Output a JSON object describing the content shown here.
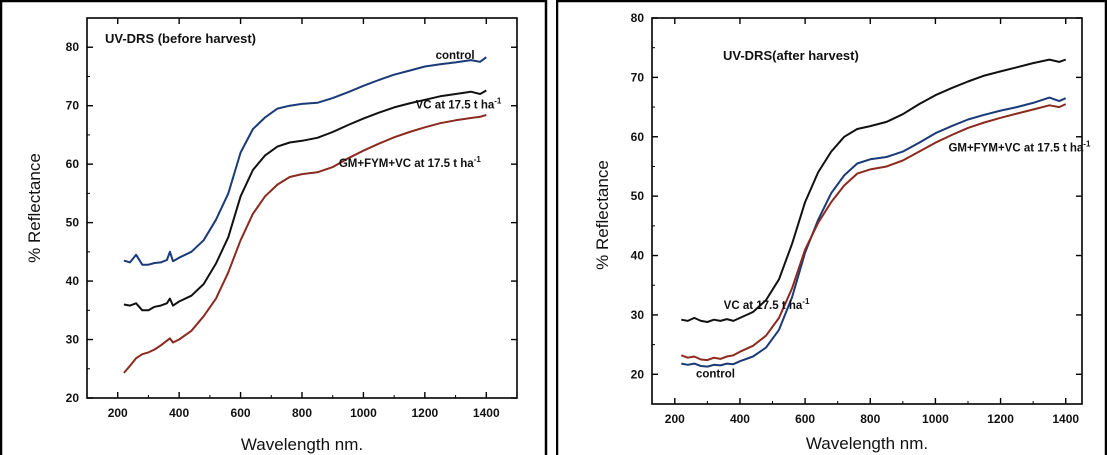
{
  "chart_data": [
    {
      "type": "line",
      "title": "UV-DRS (before harvest)",
      "xlabel": "Wavelength nm.",
      "ylabel": "% Reflectance",
      "xlim": [
        100,
        1500
      ],
      "ylim": [
        20,
        85
      ],
      "xticks": [
        200,
        400,
        600,
        800,
        1000,
        1200,
        1400
      ],
      "yticks": [
        20,
        30,
        40,
        50,
        60,
        70,
        80
      ],
      "annotations": [
        {
          "text": "control",
          "x": 1235,
          "y": 78.0
        },
        {
          "text": "VC at 17.5 t ha",
          "sup": "-1",
          "x": 1170,
          "y": 69.5
        },
        {
          "text": "GM+FYM+VC at 17.5 t ha",
          "sup": "-1",
          "x": 920,
          "y": 59.5
        }
      ],
      "series": [
        {
          "label": "control",
          "color": "#1a3a78",
          "x": [
            220,
            240,
            260,
            280,
            300,
            320,
            340,
            360,
            370,
            380,
            400,
            440,
            480,
            520,
            560,
            600,
            640,
            680,
            720,
            760,
            800,
            850,
            900,
            950,
            1000,
            1050,
            1100,
            1150,
            1200,
            1250,
            1300,
            1350,
            1380,
            1400
          ],
          "y": [
            43.5,
            43.2,
            44.5,
            42.8,
            42.8,
            43.1,
            43.2,
            43.6,
            45.0,
            43.4,
            44.0,
            45.0,
            47.0,
            50.5,
            55.0,
            62.0,
            66.0,
            68.0,
            69.5,
            70.0,
            70.3,
            70.5,
            71.3,
            72.3,
            73.4,
            74.4,
            75.3,
            76.0,
            76.7,
            77.1,
            77.4,
            77.8,
            77.5,
            78.3
          ]
        },
        {
          "label": "VC at 17.5 t ha-1",
          "color": "#111111",
          "x": [
            220,
            240,
            260,
            280,
            300,
            320,
            340,
            360,
            370,
            380,
            400,
            440,
            480,
            520,
            560,
            600,
            640,
            680,
            720,
            760,
            800,
            850,
            900,
            950,
            1000,
            1050,
            1100,
            1150,
            1200,
            1250,
            1300,
            1350,
            1380,
            1400
          ],
          "y": [
            36.0,
            35.8,
            36.2,
            35.0,
            35.0,
            35.6,
            35.8,
            36.2,
            37.0,
            35.8,
            36.5,
            37.5,
            39.5,
            43.0,
            47.5,
            54.5,
            59.0,
            61.5,
            63.0,
            63.7,
            64.0,
            64.5,
            65.5,
            66.7,
            67.8,
            68.8,
            69.7,
            70.4,
            71.0,
            71.6,
            72.0,
            72.4,
            72.0,
            72.6
          ]
        },
        {
          "label": "GM+FYM+VC at 17.5 t ha-1",
          "color": "#8b2a1e",
          "x": [
            220,
            240,
            260,
            280,
            300,
            320,
            340,
            360,
            370,
            380,
            400,
            440,
            480,
            520,
            560,
            600,
            640,
            680,
            720,
            760,
            800,
            850,
            900,
            950,
            1000,
            1050,
            1100,
            1150,
            1200,
            1250,
            1300,
            1350,
            1380,
            1400
          ],
          "y": [
            24.3,
            25.5,
            26.8,
            27.5,
            27.8,
            28.3,
            29.0,
            29.8,
            30.2,
            29.5,
            30.0,
            31.5,
            34.0,
            37.0,
            41.5,
            47.0,
            51.5,
            54.5,
            56.5,
            57.8,
            58.3,
            58.6,
            59.5,
            61.0,
            62.3,
            63.5,
            64.6,
            65.5,
            66.3,
            67.0,
            67.5,
            67.9,
            68.1,
            68.4
          ]
        }
      ]
    },
    {
      "type": "line",
      "title": "UV-DRS(after harvest)",
      "xlabel": "Wavelength nm.",
      "ylabel": "% Reflectance",
      "xlim": [
        130,
        1450
      ],
      "ylim": [
        15,
        80
      ],
      "xticks": [
        200,
        400,
        600,
        800,
        1000,
        1200,
        1400
      ],
      "yticks": [
        20,
        30,
        40,
        50,
        60,
        70,
        80
      ],
      "annotations": [
        {
          "text": "GM+FYM+VC at 17.5 t ha",
          "sup": "-1",
          "x": 1040,
          "y": 57.5
        },
        {
          "text": "VC at 17.5 t ha",
          "sup": "-1",
          "x": 350,
          "y": 31.0
        },
        {
          "text": "control",
          "x": 265,
          "y": 19.5
        }
      ],
      "series": [
        {
          "label": "VC at 17.5 t ha-1",
          "color": "#111111",
          "x": [
            220,
            240,
            260,
            280,
            300,
            320,
            340,
            360,
            380,
            400,
            440,
            480,
            520,
            560,
            600,
            640,
            680,
            720,
            760,
            800,
            850,
            900,
            950,
            1000,
            1050,
            1100,
            1150,
            1200,
            1250,
            1300,
            1350,
            1380,
            1400
          ],
          "y": [
            29.2,
            29.0,
            29.5,
            29.0,
            28.8,
            29.2,
            29.0,
            29.3,
            29.0,
            29.5,
            30.5,
            32.5,
            36.0,
            42.0,
            49.0,
            54.0,
            57.5,
            60.0,
            61.3,
            61.8,
            62.5,
            63.8,
            65.5,
            67.0,
            68.2,
            69.3,
            70.3,
            71.0,
            71.7,
            72.4,
            73.0,
            72.6,
            73.0
          ]
        },
        {
          "label": "control",
          "color": "#1a3a78",
          "x": [
            220,
            240,
            260,
            280,
            300,
            320,
            340,
            360,
            380,
            400,
            440,
            480,
            520,
            560,
            600,
            640,
            680,
            720,
            760,
            800,
            850,
            900,
            950,
            1000,
            1050,
            1100,
            1150,
            1200,
            1250,
            1300,
            1350,
            1380,
            1400
          ],
          "y": [
            21.8,
            21.6,
            21.8,
            21.4,
            21.3,
            21.6,
            21.5,
            21.8,
            21.7,
            22.2,
            23.0,
            24.5,
            27.5,
            33.0,
            40.5,
            46.0,
            50.5,
            53.5,
            55.5,
            56.2,
            56.6,
            57.5,
            59.0,
            60.6,
            61.8,
            62.9,
            63.7,
            64.4,
            65.0,
            65.7,
            66.6,
            66.0,
            66.5
          ]
        },
        {
          "label": "GM+FYM+VC at 17.5 t ha-1",
          "color": "#8b2a1e",
          "x": [
            220,
            240,
            260,
            280,
            300,
            320,
            340,
            360,
            380,
            400,
            440,
            480,
            520,
            560,
            600,
            640,
            680,
            720,
            760,
            800,
            850,
            900,
            950,
            1000,
            1050,
            1100,
            1150,
            1200,
            1250,
            1300,
            1350,
            1380,
            1400
          ],
          "y": [
            23.2,
            22.8,
            23.0,
            22.5,
            22.4,
            22.8,
            22.6,
            23.0,
            23.2,
            23.8,
            24.8,
            26.5,
            29.5,
            34.5,
            41.0,
            45.5,
            49.0,
            51.8,
            53.8,
            54.5,
            55.0,
            56.0,
            57.5,
            59.0,
            60.3,
            61.5,
            62.4,
            63.2,
            63.9,
            64.6,
            65.3,
            65.0,
            65.5
          ]
        }
      ]
    }
  ]
}
